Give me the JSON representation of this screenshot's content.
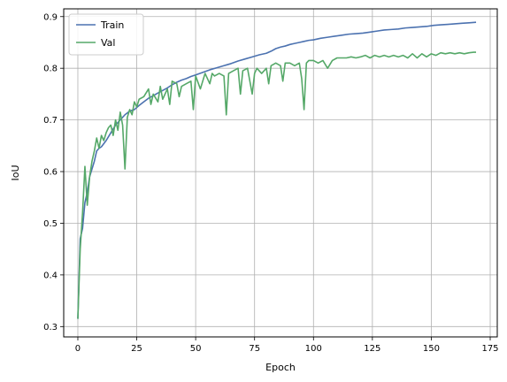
{
  "chart_data": {
    "type": "line",
    "title": "",
    "xlabel": "Epoch",
    "ylabel": "IoU",
    "xlim": [
      -6,
      178
    ],
    "ylim": [
      0.28,
      0.915
    ],
    "xticks": [
      0,
      25,
      50,
      75,
      100,
      125,
      150,
      175
    ],
    "yticks": [
      0.3,
      0.4,
      0.5,
      0.6,
      0.7,
      0.8,
      0.9
    ],
    "grid": true,
    "legend_position": "top-left",
    "series": [
      {
        "name": "Train",
        "color": "#4c72b0",
        "x": [
          0,
          1,
          2,
          3,
          4,
          5,
          6,
          7,
          8,
          9,
          10,
          12,
          14,
          16,
          18,
          20,
          22,
          24,
          26,
          28,
          30,
          32,
          34,
          36,
          38,
          40,
          42,
          44,
          46,
          48,
          50,
          53,
          56,
          59,
          62,
          65,
          68,
          71,
          74,
          77,
          80,
          82,
          84,
          86,
          88,
          90,
          92,
          94,
          96,
          98,
          100,
          103,
          106,
          109,
          112,
          115,
          118,
          121,
          124,
          127,
          130,
          133,
          136,
          139,
          142,
          145,
          148,
          151,
          154,
          157,
          160,
          163,
          166,
          169
        ],
        "values": [
          0.315,
          0.47,
          0.49,
          0.54,
          0.56,
          0.59,
          0.605,
          0.62,
          0.64,
          0.645,
          0.648,
          0.66,
          0.675,
          0.69,
          0.7,
          0.71,
          0.717,
          0.72,
          0.728,
          0.735,
          0.742,
          0.747,
          0.752,
          0.757,
          0.762,
          0.768,
          0.773,
          0.777,
          0.78,
          0.784,
          0.787,
          0.792,
          0.797,
          0.801,
          0.805,
          0.809,
          0.814,
          0.818,
          0.822,
          0.826,
          0.829,
          0.833,
          0.838,
          0.841,
          0.843,
          0.846,
          0.848,
          0.85,
          0.852,
          0.854,
          0.855,
          0.858,
          0.86,
          0.862,
          0.864,
          0.866,
          0.867,
          0.868,
          0.87,
          0.872,
          0.874,
          0.875,
          0.876,
          0.878,
          0.879,
          0.88,
          0.881,
          0.883,
          0.884,
          0.885,
          0.886,
          0.887,
          0.888,
          0.889
        ]
      },
      {
        "name": "Val",
        "color": "#55a868",
        "x": [
          0,
          1,
          2,
          3,
          4,
          5,
          6,
          7,
          8,
          9,
          10,
          11,
          12,
          13,
          14,
          15,
          16,
          17,
          18,
          19,
          20,
          21,
          22,
          23,
          24,
          25,
          26,
          28,
          30,
          31,
          32,
          34,
          35,
          36,
          38,
          39,
          40,
          42,
          43,
          44,
          46,
          48,
          49,
          50,
          52,
          54,
          56,
          57,
          58,
          60,
          62,
          63,
          64,
          66,
          68,
          69,
          70,
          72,
          74,
          75,
          76,
          78,
          80,
          81,
          82,
          84,
          86,
          87,
          88,
          90,
          92,
          94,
          95,
          96,
          97,
          98,
          100,
          102,
          104,
          106,
          108,
          110,
          112,
          114,
          116,
          118,
          120,
          122,
          124,
          126,
          128,
          130,
          132,
          134,
          136,
          138,
          140,
          142,
          144,
          146,
          148,
          150,
          152,
          154,
          156,
          158,
          160,
          162,
          164,
          166,
          168,
          169
        ],
        "values": [
          0.315,
          0.45,
          0.52,
          0.61,
          0.535,
          0.59,
          0.62,
          0.64,
          0.665,
          0.645,
          0.67,
          0.66,
          0.675,
          0.685,
          0.69,
          0.67,
          0.7,
          0.68,
          0.715,
          0.69,
          0.605,
          0.705,
          0.72,
          0.71,
          0.735,
          0.725,
          0.74,
          0.745,
          0.76,
          0.73,
          0.75,
          0.735,
          0.765,
          0.74,
          0.76,
          0.73,
          0.775,
          0.77,
          0.745,
          0.765,
          0.77,
          0.775,
          0.72,
          0.785,
          0.76,
          0.79,
          0.77,
          0.79,
          0.785,
          0.79,
          0.785,
          0.71,
          0.79,
          0.795,
          0.8,
          0.75,
          0.795,
          0.8,
          0.75,
          0.79,
          0.8,
          0.79,
          0.8,
          0.77,
          0.805,
          0.81,
          0.805,
          0.775,
          0.81,
          0.81,
          0.805,
          0.81,
          0.78,
          0.72,
          0.81,
          0.815,
          0.815,
          0.81,
          0.815,
          0.8,
          0.815,
          0.82,
          0.82,
          0.82,
          0.822,
          0.82,
          0.822,
          0.825,
          0.82,
          0.825,
          0.822,
          0.825,
          0.822,
          0.825,
          0.822,
          0.825,
          0.82,
          0.828,
          0.82,
          0.828,
          0.822,
          0.828,
          0.825,
          0.83,
          0.828,
          0.83,
          0.828,
          0.83,
          0.828,
          0.83,
          0.831,
          0.831
        ]
      }
    ]
  }
}
